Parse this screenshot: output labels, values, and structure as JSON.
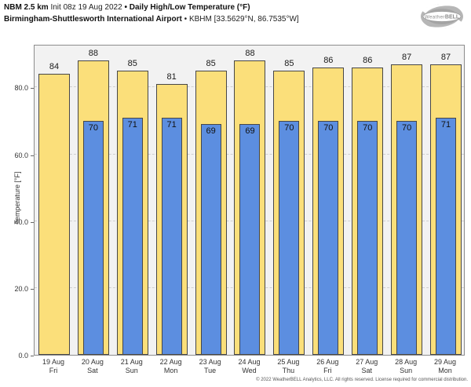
{
  "header": {
    "model": "NBM 2.5 km",
    "init": "Init 08z 19 Aug 2022",
    "bullet": "•",
    "product": "Daily High/Low Temperature (°F)",
    "station": "Birmingham-Shuttlesworth International Airport",
    "station_meta": "KBHM [33.5629°N, 86.7535°W]"
  },
  "logo": {
    "brand_weather": "Weather",
    "brand_bell": "BELL"
  },
  "chart_data": {
    "type": "bar",
    "title": "NBM 2.5 km Init 08z 19 Aug 2022 • Daily High/Low Temperature (°F)",
    "subtitle": "Birmingham-Shuttlesworth International Airport • KBHM [33.5629°N, 86.7535°W]",
    "xlabel": "",
    "ylabel": "Temperature [°F]",
    "ylim": [
      0,
      93
    ],
    "ytick_values": [
      0,
      20,
      40,
      60,
      80
    ],
    "ytick_labels": [
      "0.0",
      "20.0",
      "40.0",
      "60.0",
      "80.0"
    ],
    "grid": "horizontal-dashed",
    "legend_position": "none",
    "categories": [
      {
        "date": "19 Aug",
        "day": "Fri"
      },
      {
        "date": "20 Aug",
        "day": "Sat"
      },
      {
        "date": "21 Aug",
        "day": "Sun"
      },
      {
        "date": "22 Aug",
        "day": "Mon"
      },
      {
        "date": "23 Aug",
        "day": "Tue"
      },
      {
        "date": "24 Aug",
        "day": "Wed"
      },
      {
        "date": "25 Aug",
        "day": "Thu"
      },
      {
        "date": "26 Aug",
        "day": "Fri"
      },
      {
        "date": "27 Aug",
        "day": "Sat"
      },
      {
        "date": "28 Aug",
        "day": "Sun"
      },
      {
        "date": "29 Aug",
        "day": "Mon"
      }
    ],
    "series": [
      {
        "name": "Daily High",
        "color": "#fbdf7a",
        "values": [
          84,
          88,
          85,
          81,
          85,
          88,
          85,
          86,
          86,
          87,
          87
        ]
      },
      {
        "name": "Daily Low",
        "color": "#5c8ee0",
        "values": [
          null,
          70,
          71,
          71,
          69,
          69,
          70,
          70,
          70,
          70,
          71
        ]
      }
    ]
  },
  "footer": {
    "copyright": "© 2022 WeatherBELL Analytics, LLC. All rights reserved. License required for commercial distribution."
  },
  "colors": {
    "high_bar": "#fbdf7a",
    "low_bar": "#5c8ee0",
    "bar_border": "#474747",
    "plot_background": "#f2f2f2",
    "plot_border": "#8c8c8c",
    "gridline": "#cfcfcf"
  }
}
